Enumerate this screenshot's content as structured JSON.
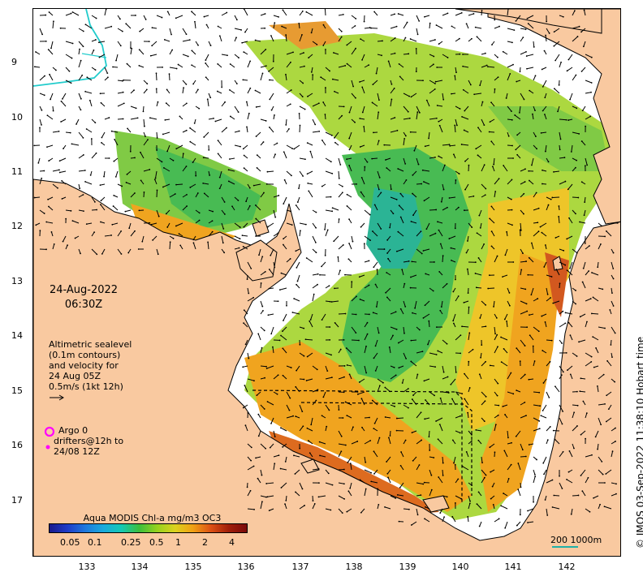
{
  "map": {
    "date": "24-Aug-2022",
    "time": "06:30Z",
    "altimetry_lines": [
      "Altimetric sealevel",
      "(0.1m contours)",
      "and velocity for",
      "24 Aug 05Z",
      "0.5m/s (1kt 12h)"
    ],
    "argo_label": "Argo 0",
    "drifter_lines": [
      "drifters@12h to",
      "24/08 12Z"
    ],
    "colorbar_title": "Aqua MODIS Chl-a mg/m3 OC3",
    "colorbar_ticks": [
      "0.05",
      "0.1",
      "0.25",
      "0.5",
      "1",
      "2",
      "4"
    ],
    "scale_label": "200  1000m",
    "credit": "© IMOS 03-Sep-2022 11:38:10 Hobart time",
    "lat_labels": [
      "9",
      "10",
      "11",
      "12",
      "13",
      "14",
      "15",
      "16",
      "17"
    ],
    "lon_labels": [
      "133",
      "134",
      "135",
      "136",
      "137",
      "138",
      "139",
      "140",
      "141",
      "142"
    ],
    "colors": {
      "land": "#f9c9a0",
      "argo_marker": "#ff00ff",
      "coast_line": "#000000",
      "river": "#22cccc"
    }
  }
}
